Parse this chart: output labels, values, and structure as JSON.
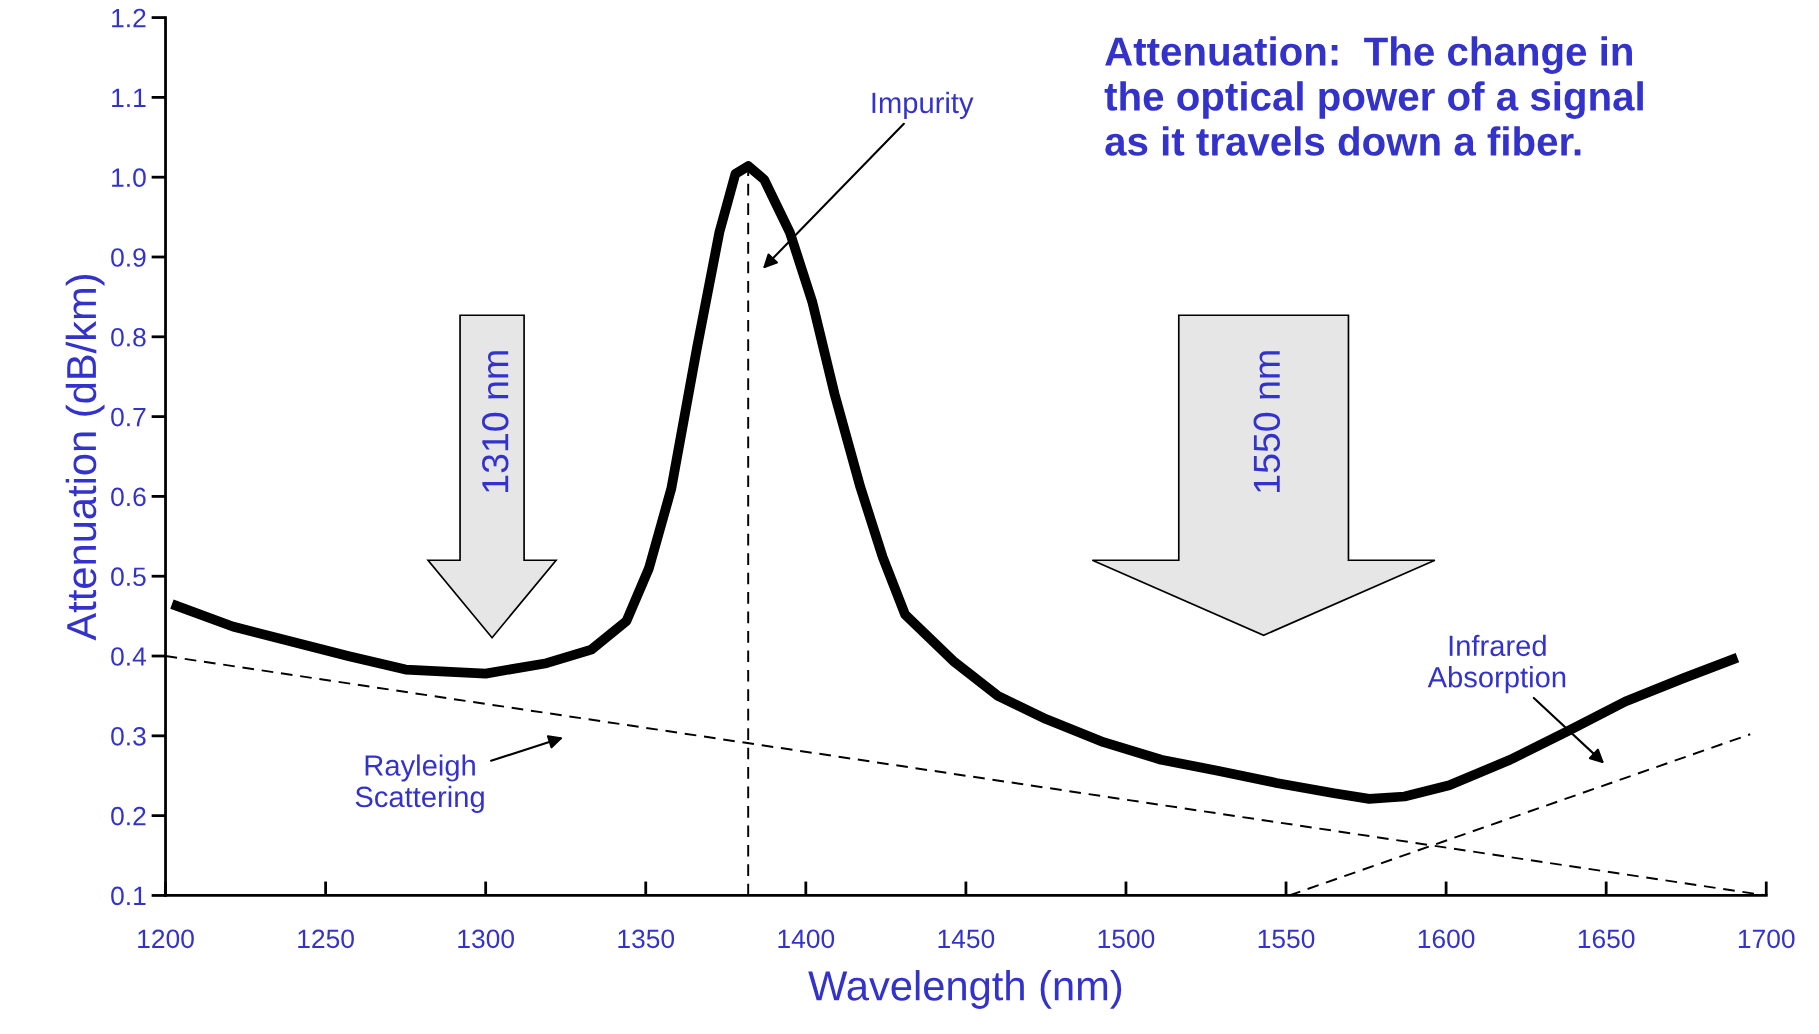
{
  "chart_data": {
    "type": "line",
    "xlabel": "Wavelength (nm)",
    "ylabel": "Attenuation (dB/km)",
    "xlim": [
      1200,
      1700
    ],
    "ylim": [
      0.1,
      1.2
    ],
    "xticks": [
      1200,
      1250,
      1300,
      1350,
      1400,
      1450,
      1500,
      1550,
      1600,
      1650,
      1700
    ],
    "yticks": [
      0.1,
      0.2,
      0.3,
      0.4,
      0.5,
      0.6,
      0.7,
      0.8,
      0.9,
      {
        "value": 1,
        "label": "1.0"
      },
      1.1,
      1.2
    ],
    "grid": false,
    "legend": false,
    "marker": "none",
    "series": [
      {
        "color": "#000000",
        "line_style": "solid",
        "x": [
          1202,
          1221,
          1257,
          1275,
          1300,
          1319,
          1333,
          1344,
          1351,
          1358,
          1366,
          1373,
          1378,
          1382,
          1387,
          1395,
          1402,
          1409,
          1417,
          1424,
          1431,
          1446,
          1460,
          1475,
          1493,
          1511,
          1529,
          1547,
          1565,
          1576,
          1587,
          1601,
          1620,
          1638,
          1656,
          1674,
          1691
        ],
        "values": [
          0.465,
          0.437,
          0.4,
          0.383,
          0.378,
          0.391,
          0.408,
          0.444,
          0.51,
          0.61,
          0.786,
          0.931,
          1.004,
          1.014,
          0.997,
          0.931,
          0.844,
          0.728,
          0.612,
          0.524,
          0.452,
          0.394,
          0.35,
          0.321,
          0.292,
          0.27,
          0.256,
          0.241,
          0.228,
          0.221,
          0.224,
          0.238,
          0.27,
          0.306,
          0.343,
          0.372,
          0.398
        ]
      },
      {
        "color": "#000000",
        "line_style": "dashed",
        "x": [
          1200,
          1700
        ],
        "values": [
          0.4,
          0.1
        ]
      },
      {
        "color": "#000000",
        "line_style": "dashed",
        "x": [
          1551,
          1695
        ],
        "values": [
          0.1,
          0.302
        ]
      },
      {
        "color": "#000000",
        "line_style": "dashed",
        "x": [
          1382,
          1382
        ],
        "values": [
          0.1,
          1.014
        ]
      }
    ],
    "annotations": [
      "Attenuation:  The change in\nthe optical power of a signal\nas it travels down a fiber.",
      "Impurity",
      "Rayleigh\nScattering",
      "Infrared\nAbsorption",
      "1310 nm",
      "1550 nm"
    ]
  }
}
